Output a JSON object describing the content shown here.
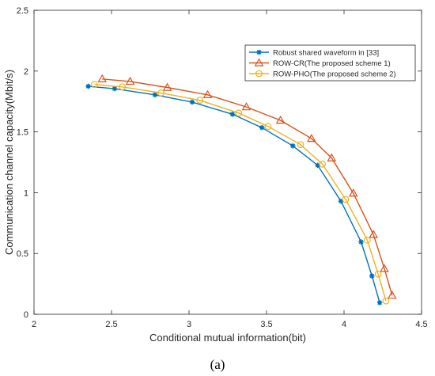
{
  "chart_data": {
    "type": "line",
    "xlabel": "Conditional mutual information(bit)",
    "ylabel": "Communication channel capacity(Mbit/s)",
    "xlim": [
      2,
      4.5
    ],
    "ylim": [
      0,
      2.5
    ],
    "xticks": [
      "2",
      "2.5",
      "3",
      "3.5",
      "4",
      "4.5"
    ],
    "yticks": [
      "0",
      "0.5",
      "1",
      "1.5",
      "2",
      "2.5"
    ],
    "grid": false,
    "legend_position": "top-right",
    "caption": "(a)",
    "series": [
      {
        "name": "Robust shared waveform in [33]",
        "color": "#0072BD",
        "marker": "asterisk",
        "points": [
          [
            2.35,
            1.875
          ],
          [
            2.52,
            1.855
          ],
          [
            2.78,
            1.805
          ],
          [
            3.02,
            1.745
          ],
          [
            3.28,
            1.645
          ],
          [
            3.47,
            1.535
          ],
          [
            3.67,
            1.385
          ],
          [
            3.83,
            1.225
          ],
          [
            3.98,
            0.93
          ],
          [
            4.11,
            0.595
          ],
          [
            4.18,
            0.315
          ],
          [
            4.23,
            0.095
          ]
        ]
      },
      {
        "name": "ROW-CR(The proposed scheme 1)",
        "color": "#D95319",
        "marker": "triangle",
        "points": [
          [
            2.44,
            1.935
          ],
          [
            2.62,
            1.915
          ],
          [
            2.86,
            1.865
          ],
          [
            3.12,
            1.805
          ],
          [
            3.37,
            1.705
          ],
          [
            3.59,
            1.595
          ],
          [
            3.79,
            1.445
          ],
          [
            3.92,
            1.285
          ],
          [
            4.06,
            0.995
          ],
          [
            4.19,
            0.655
          ],
          [
            4.26,
            0.375
          ],
          [
            4.31,
            0.155
          ]
        ]
      },
      {
        "name": "ROW-PHO(The proposed scheme 2)",
        "color": "#EDB120",
        "marker": "circle",
        "points": [
          [
            2.39,
            1.89
          ],
          [
            2.57,
            1.87
          ],
          [
            2.82,
            1.82
          ],
          [
            3.07,
            1.76
          ],
          [
            3.32,
            1.655
          ],
          [
            3.51,
            1.545
          ],
          [
            3.72,
            1.395
          ],
          [
            3.86,
            1.235
          ],
          [
            4.01,
            0.945
          ],
          [
            4.15,
            0.61
          ],
          [
            4.22,
            0.33
          ],
          [
            4.27,
            0.11
          ]
        ]
      }
    ]
  }
}
